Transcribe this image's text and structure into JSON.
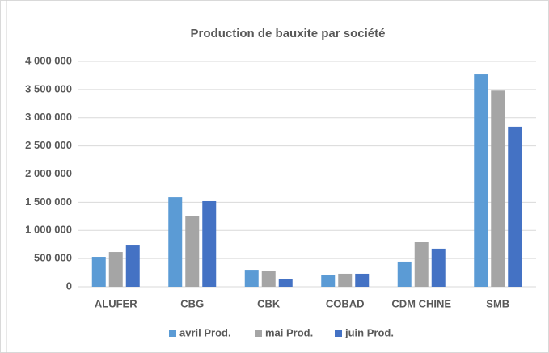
{
  "chart_data": {
    "type": "bar",
    "title": "Production de bauxite par société",
    "categories": [
      "ALUFER",
      "CBG",
      "CBK",
      "COBAD",
      "CDM CHINE",
      "SMB"
    ],
    "series": [
      {
        "name": "avril Prod.",
        "color": "#5b9bd5",
        "values": [
          530000,
          1590000,
          300000,
          215000,
          445000,
          3770000
        ]
      },
      {
        "name": "mai Prod.",
        "color": "#a5a5a5",
        "values": [
          616000,
          1260000,
          287000,
          230000,
          800000,
          3480000
        ]
      },
      {
        "name": "juin Prod.",
        "color": "#4472c4",
        "values": [
          745000,
          1520000,
          130000,
          230000,
          675000,
          2840000
        ]
      }
    ],
    "ylim": [
      0,
      4000000
    ],
    "yticks": [
      0,
      {
        "value": 500000,
        "label": "500 000"
      },
      {
        "value": 1000000,
        "label": "1 000 000"
      },
      {
        "value": 1500000,
        "label": "1 500 000"
      },
      {
        "value": 2000000,
        "label": "2 000 000"
      },
      {
        "value": 2500000,
        "label": "2 500 000"
      },
      {
        "value": 3000000,
        "label": "3 000 000"
      },
      {
        "value": 3500000,
        "label": "3 500 000"
      },
      {
        "value": 4000000,
        "label": "4 000 000"
      }
    ],
    "grid": true,
    "legend": "bottom"
  }
}
